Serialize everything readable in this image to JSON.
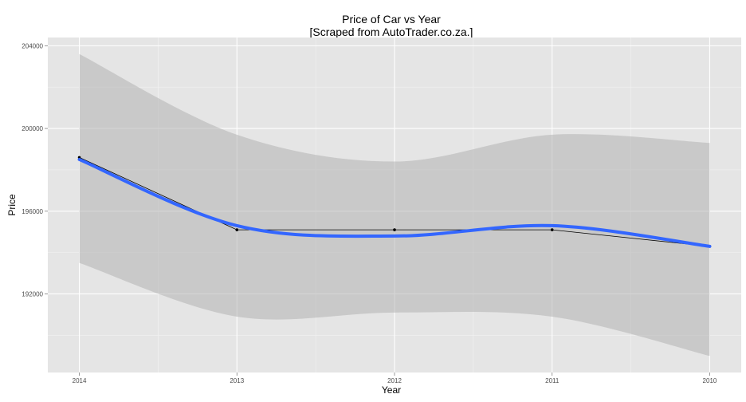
{
  "chart_data": {
    "type": "line",
    "title": "Price of Car vs Year",
    "subtitle": "[Scraped from AutoTrader.co.za.]",
    "xlabel": "Year",
    "ylabel": "Price",
    "x_categories": [
      "2014",
      "2013",
      "2012",
      "2011",
      "2010"
    ],
    "y_ticks": [
      192000,
      196000,
      200000,
      204000
    ],
    "y_tick_labels": [
      "192000",
      "196000",
      "200000",
      "204000"
    ],
    "ylim": [
      188200,
      204400
    ],
    "grid": true,
    "series": [
      {
        "kind": "observed",
        "x": [
          "2014",
          "2013",
          "2012",
          "2011",
          "2010"
        ],
        "y": [
          198600,
          195100,
          195100,
          195100,
          194300
        ],
        "color": "#000000"
      },
      {
        "kind": "smooth",
        "x": [
          "2014",
          "2013",
          "2012",
          "2011",
          "2010"
        ],
        "y": [
          198500,
          195300,
          194800,
          195300,
          194300
        ],
        "color": "#3366FF",
        "ci_upper": [
          203600,
          199700,
          198400,
          199700,
          199300
        ],
        "ci_lower": [
          193500,
          190900,
          191100,
          190900,
          189000
        ],
        "ci_color": "#b3b3b3"
      }
    ],
    "panel_background": "#e5e5e5",
    "grid_color": "#ffffff"
  }
}
